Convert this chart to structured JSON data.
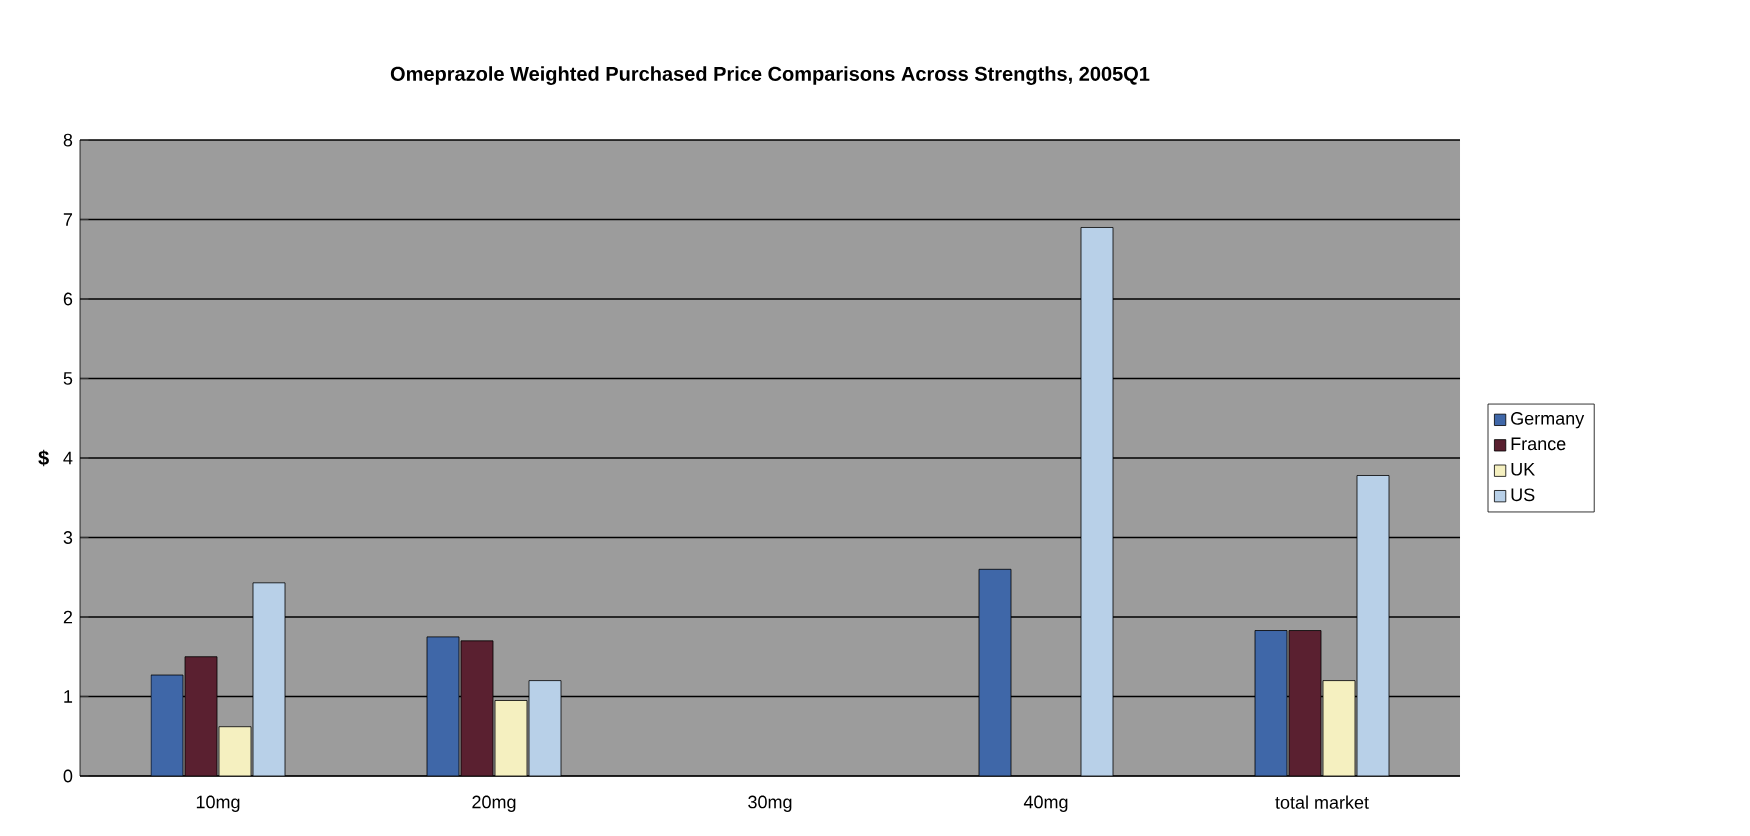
{
  "chart_data": {
    "type": "bar",
    "title": "Omeprazole Weighted Purchased Price Comparisons Across Strengths, 2005Q1",
    "ylabel": "$",
    "categories": [
      "10mg",
      "20mg",
      "30mg",
      "40mg",
      "total market"
    ],
    "series": [
      {
        "name": "Germany",
        "color": "#3f67a8",
        "values": [
          1.27,
          1.75,
          null,
          2.6,
          1.83
        ]
      },
      {
        "name": "France",
        "color": "#5a2030",
        "values": [
          1.5,
          1.7,
          null,
          null,
          1.83
        ]
      },
      {
        "name": "UK",
        "color": "#f5f0c0",
        "values": [
          0.62,
          0.95,
          null,
          null,
          1.2
        ]
      },
      {
        "name": "US",
        "color": "#b8d0e8",
        "values": [
          2.43,
          1.2,
          null,
          6.9,
          3.78
        ]
      }
    ],
    "ylim": [
      0,
      8
    ],
    "yticks": [
      0,
      1,
      2,
      3,
      4,
      5,
      6,
      7,
      8
    ],
    "grid": "y",
    "legend": "right"
  }
}
